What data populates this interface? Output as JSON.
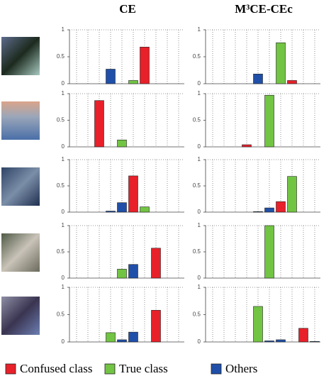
{
  "legend": [
    {
      "name": "Confused class",
      "color": "#e8202a"
    },
    {
      "name": "True class",
      "color": "#72c443"
    },
    {
      "name": "Others",
      "color": "#1f4fa8"
    }
  ],
  "chart_data": [
    {
      "type": "bar",
      "title": "CE",
      "categories": [
        null,
        null,
        null,
        null,
        null,
        null,
        null,
        null,
        null,
        null
      ],
      "series": [
        {
          "values": [
            null,
            null,
            null,
            null,
            null,
            null,
            0.68,
            null,
            null,
            null
          ]
        },
        {
          "values": [
            null,
            null,
            null,
            null,
            null,
            0.06,
            null,
            null,
            null,
            null
          ]
        },
        {
          "values": [
            null,
            null,
            null,
            0.27,
            null,
            null,
            null,
            null,
            null,
            null
          ]
        }
      ],
      "ylim": [
        0,
        1
      ],
      "yticks": [
        0,
        0.5,
        1
      ]
    },
    {
      "type": "bar",
      "title": "M³CE-CEc",
      "categories": [
        null,
        null,
        null,
        null,
        null,
        null,
        null,
        null,
        null,
        null
      ],
      "series": [
        {
          "values": [
            null,
            null,
            null,
            null,
            null,
            null,
            null,
            0.06,
            null,
            null
          ]
        },
        {
          "values": [
            null,
            null,
            null,
            null,
            null,
            null,
            0.76,
            null,
            null,
            null
          ]
        },
        {
          "values": [
            null,
            null,
            null,
            null,
            0.18,
            null,
            null,
            null,
            null,
            null
          ]
        }
      ],
      "ylim": [
        0,
        1
      ],
      "yticks": [
        0,
        0.5,
        1
      ]
    },
    {
      "type": "bar",
      "categories": [
        null,
        null,
        null,
        null,
        null,
        null,
        null,
        null,
        null,
        null
      ],
      "series": [
        {
          "values": [
            null,
            null,
            0.87,
            null,
            null,
            null,
            null,
            null,
            null,
            null
          ]
        },
        {
          "values": [
            null,
            null,
            null,
            null,
            0.13,
            null,
            null,
            null,
            null,
            null
          ]
        },
        {
          "values": [
            null,
            null,
            null,
            null,
            null,
            null,
            null,
            null,
            null,
            null
          ]
        }
      ],
      "ylim": [
        0,
        1
      ],
      "yticks": [
        0,
        0.5,
        1
      ]
    },
    {
      "type": "bar",
      "categories": [
        null,
        null,
        null,
        null,
        null,
        null,
        null,
        null,
        null,
        null
      ],
      "series": [
        {
          "values": [
            null,
            null,
            null,
            0.04,
            null,
            null,
            null,
            null,
            null,
            null
          ]
        },
        {
          "values": [
            null,
            null,
            null,
            null,
            null,
            0.97,
            null,
            null,
            null,
            null
          ]
        },
        {
          "values": [
            null,
            null,
            null,
            null,
            null,
            null,
            null,
            null,
            null,
            null
          ]
        }
      ],
      "ylim": [
        0,
        1
      ],
      "yticks": [
        0,
        0.5,
        1
      ]
    },
    {
      "type": "bar",
      "categories": [
        null,
        null,
        null,
        null,
        null,
        null,
        null,
        null,
        null,
        null
      ],
      "series": [
        {
          "values": [
            null,
            null,
            null,
            null,
            null,
            0.69,
            null,
            null,
            null,
            null
          ]
        },
        {
          "values": [
            null,
            null,
            null,
            null,
            null,
            null,
            0.1,
            null,
            null,
            null
          ]
        },
        {
          "values": [
            null,
            null,
            null,
            0.02,
            0.18,
            null,
            null,
            null,
            null,
            null
          ]
        }
      ],
      "ylim": [
        0,
        1
      ],
      "yticks": [
        0,
        0.5,
        1
      ]
    },
    {
      "type": "bar",
      "categories": [
        null,
        null,
        null,
        null,
        null,
        null,
        null,
        null,
        null,
        null
      ],
      "series": [
        {
          "values": [
            null,
            null,
            null,
            null,
            null,
            null,
            0.2,
            null,
            null,
            null
          ]
        },
        {
          "values": [
            null,
            null,
            null,
            null,
            null,
            null,
            null,
            0.68,
            null,
            null
          ]
        },
        {
          "values": [
            null,
            null,
            null,
            null,
            0.01,
            0.08,
            null,
            null,
            null,
            null
          ]
        }
      ],
      "ylim": [
        0,
        1
      ],
      "yticks": [
        0,
        0.5,
        1
      ]
    },
    {
      "type": "bar",
      "categories": [
        null,
        null,
        null,
        null,
        null,
        null,
        null,
        null,
        null,
        null
      ],
      "series": [
        {
          "values": [
            null,
            null,
            null,
            null,
            null,
            null,
            null,
            0.57,
            null,
            null
          ]
        },
        {
          "values": [
            null,
            null,
            null,
            null,
            0.17,
            null,
            null,
            null,
            null,
            null
          ]
        },
        {
          "values": [
            null,
            null,
            null,
            null,
            null,
            0.26,
            null,
            null,
            null,
            null
          ]
        }
      ],
      "ylim": [
        0,
        1
      ],
      "yticks": [
        0,
        0.5,
        1
      ]
    },
    {
      "type": "bar",
      "categories": [
        null,
        null,
        null,
        null,
        null,
        null,
        null,
        null,
        null,
        null
      ],
      "series": [
        {
          "values": [
            null,
            null,
            null,
            null,
            null,
            null,
            null,
            null,
            null,
            null
          ]
        },
        {
          "values": [
            null,
            null,
            null,
            null,
            null,
            1.0,
            null,
            null,
            null,
            null
          ]
        },
        {
          "values": [
            null,
            null,
            null,
            null,
            null,
            null,
            null,
            null,
            null,
            null
          ]
        }
      ],
      "ylim": [
        0,
        1
      ],
      "yticks": [
        0,
        0.5,
        1
      ]
    },
    {
      "type": "bar",
      "categories": [
        null,
        null,
        null,
        null,
        null,
        null,
        null,
        null,
        null,
        null
      ],
      "series": [
        {
          "values": [
            null,
            null,
            null,
            null,
            null,
            null,
            null,
            0.58,
            null,
            null
          ]
        },
        {
          "values": [
            null,
            null,
            null,
            0.17,
            null,
            null,
            null,
            null,
            null,
            null
          ]
        },
        {
          "values": [
            null,
            null,
            null,
            null,
            0.04,
            0.18,
            null,
            null,
            null,
            null
          ]
        }
      ],
      "ylim": [
        0,
        1
      ],
      "yticks": [
        0,
        0.5,
        1
      ]
    },
    {
      "type": "bar",
      "categories": [
        null,
        null,
        null,
        null,
        null,
        null,
        null,
        null,
        null,
        null
      ],
      "series": [
        {
          "values": [
            null,
            null,
            null,
            null,
            null,
            null,
            null,
            null,
            0.25,
            null
          ]
        },
        {
          "values": [
            null,
            null,
            null,
            null,
            0.65,
            null,
            null,
            null,
            null,
            null
          ]
        },
        {
          "values": [
            null,
            null,
            null,
            null,
            null,
            0.02,
            0.04,
            null,
            null,
            0.01
          ]
        }
      ],
      "ylim": [
        0,
        1
      ],
      "yticks": [
        0,
        0.5,
        1
      ]
    }
  ]
}
